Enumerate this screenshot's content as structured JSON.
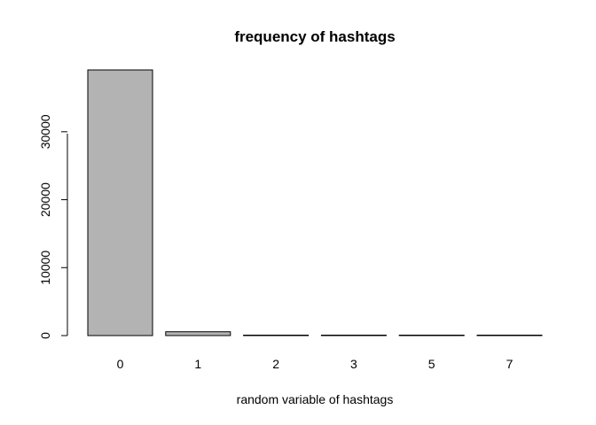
{
  "chart_data": {
    "type": "bar",
    "title": "frequency of hashtags",
    "xlabel": "random variable of hashtags",
    "ylabel": "",
    "categories": [
      "0",
      "1",
      "2",
      "3",
      "5",
      "7"
    ],
    "values": [
      39100,
      560,
      45,
      8,
      3,
      2
    ],
    "ylim": [
      0,
      39100
    ],
    "yticks": [
      0,
      10000,
      20000,
      30000
    ],
    "ytick_labels": [
      "0",
      "10000",
      "20000",
      "30000"
    ],
    "grid": false,
    "bar_color": "#b3b3b3",
    "bar_border_color": "#000000"
  }
}
